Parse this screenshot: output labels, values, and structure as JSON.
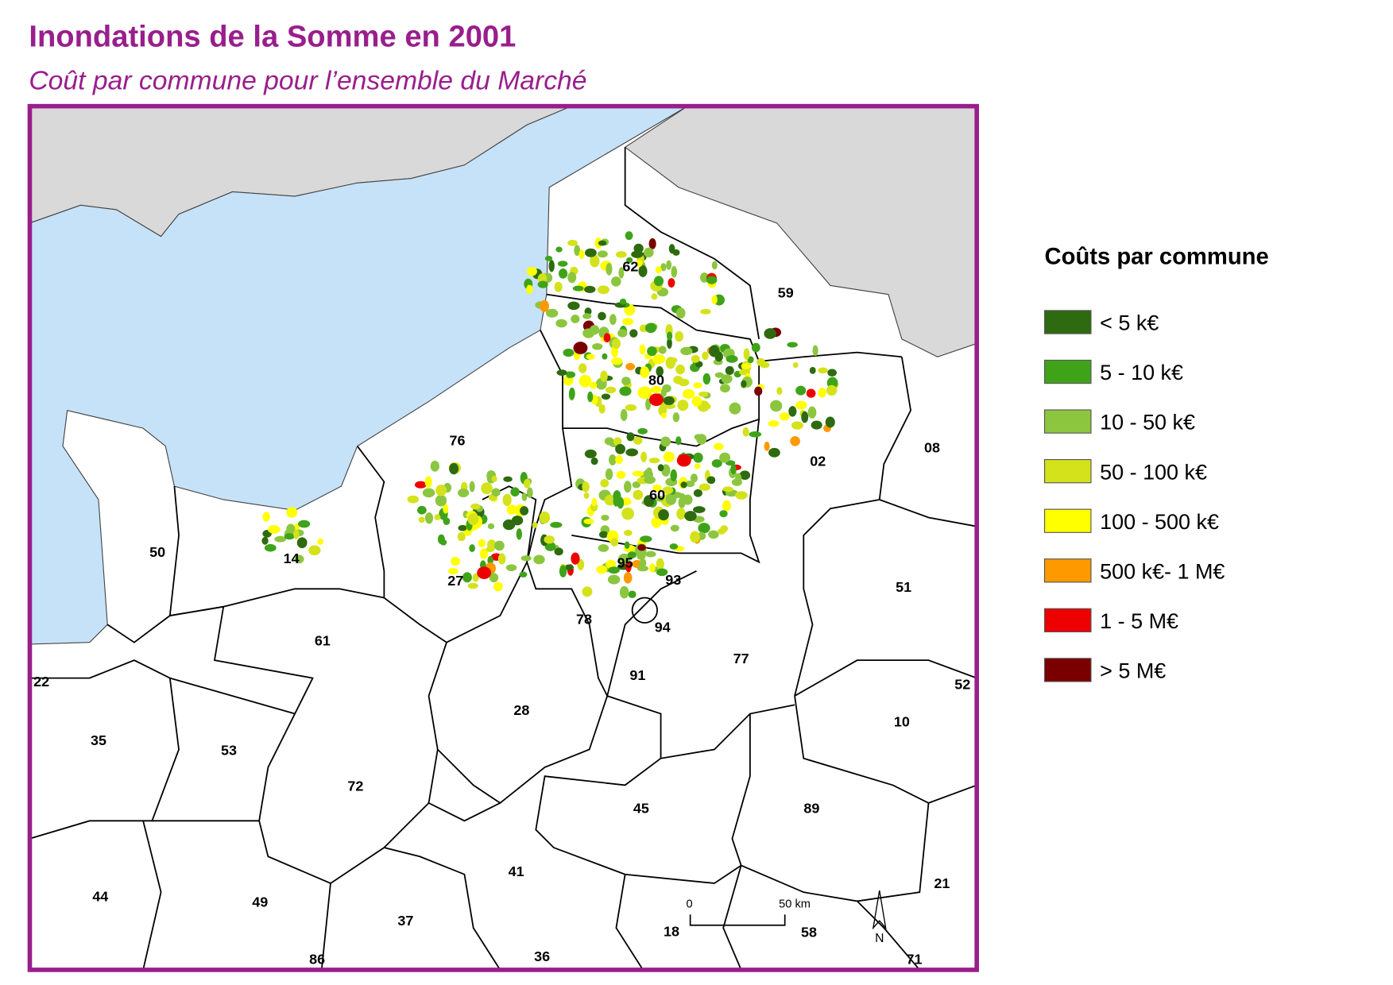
{
  "header": {
    "title": "Inondations de la Somme en 2001",
    "subtitle": "Coût par commune pour l’ensemble du Marché"
  },
  "legend": {
    "title": "Coûts par commune",
    "items": [
      {
        "label": "< 5 k€",
        "color": "#2e6b10"
      },
      {
        "label": "5 - 10 k€",
        "color": "#3fa31a"
      },
      {
        "label": "10 - 50 k€",
        "color": "#8cc63f"
      },
      {
        "label": "50 - 100 k€",
        "color": "#d4e21b"
      },
      {
        "label": "100 - 500 k€",
        "color": "#ffff00"
      },
      {
        "label": "500 k€- 1 M€",
        "color": "#ff9900"
      },
      {
        "label": "1 - 5 M€",
        "color": "#ee0000"
      },
      {
        "label": "> 5 M€",
        "color": "#7a0000"
      }
    ]
  },
  "departments": [
    "62",
    "59",
    "80",
    "76",
    "02",
    "08",
    "60",
    "50",
    "14",
    "27",
    "95",
    "93",
    "78",
    "94",
    "51",
    "61",
    "91",
    "77",
    "52",
    "22",
    "35",
    "53",
    "28",
    "10",
    "72",
    "45",
    "89",
    "44",
    "49",
    "41",
    "37",
    "18",
    "58",
    "21",
    "86",
    "36",
    "71"
  ],
  "scale_bar": {
    "start": "0",
    "end": "50 km"
  },
  "north": "N"
}
